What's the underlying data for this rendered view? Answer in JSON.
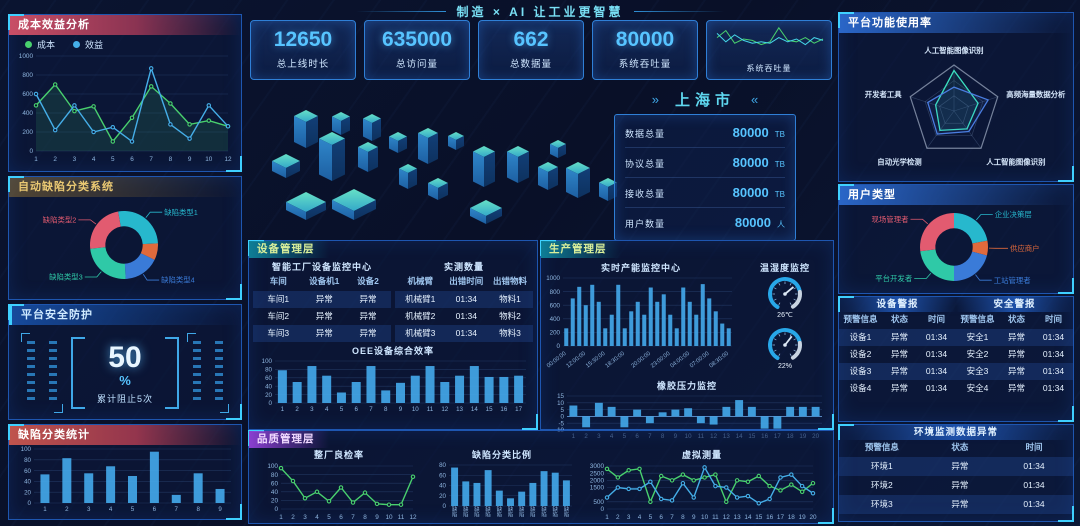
{
  "header": {
    "title": "制造 × AI  让工业更智慧"
  },
  "colors": {
    "accent_cyan": "#3fd0ff",
    "value_blue": "#57c4ff",
    "bar_blue": "#43a7e8",
    "line_green": "#49d06e",
    "line_blue": "#45aee8",
    "pie_pink": "#e25b70",
    "pie_cyan": "#27b8cd",
    "pie_orange": "#e06a3c",
    "pie_blue": "#3a7bd8",
    "pie_teal": "#2fc9a7"
  },
  "stat_cards": [
    {
      "value": "12650",
      "label": "总上线时长"
    },
    {
      "value": "635000",
      "label": "总访问量"
    },
    {
      "value": "662",
      "label": "总数据量"
    },
    {
      "value": "80000",
      "label": "系统吞吐量"
    }
  ],
  "mini_card": {
    "label": "系统吞吐量"
  },
  "city_panel": {
    "name": "上海市",
    "arrow_left": "»",
    "arrow_right": "«",
    "metrics": [
      {
        "label": "数据总量",
        "value": "80000",
        "unit": "TB"
      },
      {
        "label": "协议总量",
        "value": "80000",
        "unit": "TB"
      },
      {
        "label": "接收总量",
        "value": "80000",
        "unit": "TB"
      },
      {
        "label": "用户数量",
        "value": "80000",
        "unit": "人"
      }
    ]
  },
  "panel_titles": {
    "cost_benefit": "成本效益分析",
    "defect_system": "自动缺陷分类系统",
    "security": "平台安全防护",
    "defect_stats": "缺陷分类统计",
    "device_mgmt": "设备管理层",
    "production_mgmt": "生产管理层",
    "quality_mgmt": "品质管理层",
    "platform_usage": "平台功能使用率",
    "user_type": "用户类型"
  },
  "subtitles": {
    "device_oee": "OEE设备综合效率",
    "capacity": "实时产能监控中心",
    "temp_humidity": "温湿度监控",
    "pressure": "橡胶压力监控",
    "inspection": "整厂良检率",
    "defect_ratio": "缺陷分类比例",
    "virtual": "虚拟测量"
  },
  "security_panel": {
    "value": "50",
    "unit": "%",
    "caption": "累计阻止5次"
  },
  "device_tables": {
    "left": {
      "title": "智能工厂设备监控中心",
      "columns": [
        "车间",
        "设备机1",
        "设备2"
      ],
      "rows": [
        [
          "车间1",
          "异常",
          "异常"
        ],
        [
          "车间2",
          "异常",
          "异常"
        ],
        [
          "车间3",
          "异常",
          "异常"
        ]
      ]
    },
    "right": {
      "title": "实测数量",
      "columns": [
        "机械臂",
        "出错时间",
        "出错物料"
      ],
      "rows": [
        [
          "机械臂1",
          "01:34",
          "物料1"
        ],
        [
          "机械臂2",
          "01:34",
          "物料2"
        ],
        [
          "机械臂3",
          "01:34",
          "物料3"
        ]
      ]
    }
  },
  "gauges": [
    {
      "value": "26℃",
      "needle_deg": -40
    },
    {
      "value": "22%",
      "needle_deg": -52
    }
  ],
  "alarm_tables": {
    "device": {
      "title": "设备警报",
      "columns": [
        "预警信息",
        "状态",
        "时间"
      ],
      "rows": [
        [
          "设备1",
          "异常",
          "01:34"
        ],
        [
          "设备2",
          "异常",
          "01:34"
        ],
        [
          "设备3",
          "异常",
          "01:34"
        ],
        [
          "设备4",
          "异常",
          "01:34"
        ]
      ]
    },
    "safety": {
      "title": "安全警报",
      "columns": [
        "预警信息",
        "状态",
        "时间"
      ],
      "rows": [
        [
          "安全1",
          "异常",
          "01:34"
        ],
        [
          "安全2",
          "异常",
          "01:34"
        ],
        [
          "安全3",
          "异常",
          "01:34"
        ],
        [
          "安全4",
          "异常",
          "01:34"
        ]
      ]
    },
    "environment": {
      "title": "环境监测数据异常",
      "columns": [
        "预警信息",
        "状态",
        "时间"
      ],
      "rows": [
        [
          "环境1",
          "异常",
          "01:34"
        ],
        [
          "环境2",
          "异常",
          "01:34"
        ],
        [
          "环境3",
          "异常",
          "01:34"
        ]
      ]
    }
  },
  "chart_data": [
    {
      "id": "cost_benefit",
      "type": "line",
      "title": "成本效益分析",
      "categories": [
        "1",
        "2",
        "3",
        "4",
        "5",
        "6",
        "7",
        "8",
        "9",
        "10",
        "12"
      ],
      "series": [
        {
          "name": "成本",
          "color": "#49d06e",
          "values": [
            480,
            700,
            420,
            470,
            100,
            350,
            680,
            500,
            280,
            320,
            260
          ]
        },
        {
          "name": "效益",
          "color": "#45aee8",
          "values": [
            600,
            220,
            480,
            200,
            250,
            100,
            870,
            280,
            130,
            480,
            260
          ]
        }
      ],
      "ylim": [
        0,
        1000
      ],
      "yticks": [
        0,
        200,
        400,
        600,
        800,
        1000
      ],
      "area": true,
      "legend_position": "top",
      "grid": true
    },
    {
      "id": "defect_donut",
      "type": "pie",
      "title": "自动缺陷分类系统",
      "start": -100,
      "slices": [
        {
          "label": "缺陷类型1",
          "value": 27,
          "color": "#27b8cd"
        },
        {
          "label": null,
          "value": 8,
          "color": "#e06a3c"
        },
        {
          "label": "缺陷类型4",
          "value": 17,
          "color": "#3a7bd8"
        },
        {
          "label": "缺陷类型3",
          "value": 24,
          "color": "#2fc9a7"
        },
        {
          "label": "缺陷类型2",
          "value": 24,
          "color": "#e25b70"
        }
      ]
    },
    {
      "id": "defect_stats",
      "type": "bar",
      "title": "缺陷分类统计",
      "categories": [
        "1",
        "2",
        "3",
        "4",
        "5",
        "6",
        "7",
        "8",
        "9"
      ],
      "values": [
        53,
        83,
        55,
        68,
        50,
        95,
        15,
        55,
        26
      ],
      "ylim": [
        0,
        100
      ],
      "yticks": [
        0,
        20,
        40,
        60,
        80,
        100
      ],
      "color": "#43a7e8"
    },
    {
      "id": "mini_throughput",
      "type": "line",
      "title": "系统吞吐量",
      "mini": true,
      "series": [
        {
          "name": "a",
          "color": "#49d06e",
          "values": [
            55,
            80,
            35,
            50,
            45,
            30,
            40,
            90,
            45,
            40,
            55,
            35,
            50
          ]
        },
        {
          "name": "b",
          "color": "#45d6e8",
          "values": [
            70,
            40,
            65,
            45,
            35,
            40,
            35,
            55,
            40,
            50,
            30,
            55,
            45
          ]
        }
      ],
      "ylim": [
        0,
        100
      ],
      "yticks": []
    },
    {
      "id": "oee",
      "type": "bar",
      "title": "OEE设备综合效率",
      "categories": [
        "1",
        "2",
        "3",
        "4",
        "5",
        "6",
        "7",
        "8",
        "9",
        "10",
        "11",
        "12",
        "13",
        "14",
        "15",
        "16",
        "17"
      ],
      "values": [
        78,
        50,
        88,
        65,
        25,
        50,
        88,
        30,
        48,
        65,
        88,
        50,
        65,
        88,
        62,
        62,
        65
      ],
      "ylim": [
        0,
        100
      ],
      "yticks": [
        0,
        20,
        40,
        60,
        80,
        100
      ],
      "color": "#43a7e8"
    },
    {
      "id": "capacity",
      "type": "bar",
      "title": "实时产能监控中心",
      "values": [
        260,
        700,
        870,
        600,
        900,
        650,
        260,
        460,
        900,
        260,
        510,
        650,
        460,
        860,
        650,
        760,
        460,
        260,
        860,
        650,
        460,
        910,
        700,
        510,
        330,
        260
      ],
      "rotated_labels": [
        "00:00:00",
        "12:00:00",
        "15:30:00",
        "18:30:00",
        "20:00:00",
        "23:00:00",
        "04:00:00",
        "07:00:00",
        "08:30:00"
      ],
      "ylim": [
        0,
        1000
      ],
      "yticks": [
        0,
        200,
        400,
        600,
        800,
        1000
      ],
      "color": "#43a7e8"
    },
    {
      "id": "pressure",
      "type": "bar",
      "title": "橡胶压力监控",
      "categories": [
        "1",
        "2",
        "3",
        "4",
        "5",
        "6",
        "7",
        "8",
        "9",
        "10",
        "11",
        "12",
        "13",
        "14",
        "15",
        "16",
        "17",
        "18",
        "19",
        "20"
      ],
      "values": [
        8,
        -8,
        10,
        7,
        -8,
        5,
        -5,
        3,
        5,
        6,
        -5,
        -6,
        7,
        12,
        7,
        -9,
        -9,
        7,
        7,
        7
      ],
      "ylim": [
        -10,
        15
      ],
      "yticks": [
        -10,
        -5,
        0,
        5,
        10,
        15
      ],
      "color": "#43a7e8"
    },
    {
      "id": "inspection",
      "type": "line",
      "title": "整厂良检率",
      "categories": [
        "1",
        "2",
        "3",
        "4",
        "5",
        "6",
        "7",
        "8",
        "9",
        "10",
        "11",
        "12"
      ],
      "series": [
        {
          "name": "良检率",
          "color": "#49d06e",
          "values": [
            95,
            65,
            25,
            40,
            18,
            50,
            15,
            38,
            12,
            10,
            10,
            75
          ]
        }
      ],
      "ylim": [
        0,
        100
      ],
      "yticks": [
        0,
        20,
        40,
        60,
        80,
        100
      ]
    },
    {
      "id": "defect_ratio",
      "type": "bar",
      "title": "缺陷分类比例",
      "categories": [
        "缺陷",
        "缺陷",
        "缺陷",
        "缺陷",
        "缺陷",
        "缺陷",
        "缺陷",
        "缺陷",
        "缺陷",
        "缺陷",
        "缺陷"
      ],
      "values": [
        75,
        48,
        45,
        70,
        30,
        15,
        28,
        45,
        68,
        65,
        50
      ],
      "ylim": [
        0,
        80
      ],
      "yticks": [
        0,
        20,
        40,
        60,
        80
      ],
      "color": "#43a7e8",
      "vertical_labels": true
    },
    {
      "id": "virtual",
      "type": "line",
      "title": "虚拟测量",
      "categories": [
        "1",
        "2",
        "3",
        "4",
        "5",
        "6",
        "7",
        "8",
        "9",
        "10",
        "11",
        "12",
        "13",
        "14",
        "15",
        "16",
        "17",
        "18",
        "19",
        "20"
      ],
      "series": [
        {
          "name": "series1",
          "color": "#49d06e",
          "values": [
            2800,
            2200,
            2700,
            2800,
            500,
            2300,
            2000,
            2400,
            2000,
            2200,
            2400,
            500,
            2000,
            1900,
            2300,
            1600,
            1300,
            1700,
            1200,
            1800
          ]
        },
        {
          "name": "series2",
          "color": "#45aee8",
          "values": [
            800,
            1500,
            1400,
            1400,
            1900,
            700,
            600,
            1800,
            800,
            2900,
            1600,
            1500,
            800,
            900,
            400,
            700,
            2200,
            2400,
            1600,
            1100
          ]
        }
      ],
      "ylim": [
        0,
        3000
      ],
      "yticks": [
        0,
        500,
        1500,
        2000,
        2500,
        3000
      ]
    },
    {
      "id": "radar",
      "type": "radar",
      "title": "平台功能使用率",
      "axes": [
        "人工智能图像识别",
        "高频海量数据分析",
        "人工智能图像识别",
        "自动光学检测",
        "开发者工具"
      ],
      "series": [
        {
          "name": "s1",
          "color": "#3be0c0",
          "values": [
            88,
            55,
            48,
            52,
            42
          ]
        },
        {
          "name": "s2",
          "color": "#4a7de0",
          "values": [
            52,
            78,
            55,
            62,
            60
          ]
        }
      ],
      "max": 100
    },
    {
      "id": "user_donut",
      "type": "pie",
      "title": "用户类型",
      "start": -90,
      "slices": [
        {
          "label": "企业决策层",
          "value": 22,
          "color": "#27b8cd"
        },
        {
          "label": "供应商户",
          "value": 7,
          "color": "#e06a3c"
        },
        {
          "label": "工站管理者",
          "value": 21,
          "color": "#3a7bd8"
        },
        {
          "label": "平台开发者",
          "value": 23,
          "color": "#2fc9a7"
        },
        {
          "label": "现场管理者",
          "value": 27,
          "color": "#e25b70"
        }
      ]
    }
  ]
}
